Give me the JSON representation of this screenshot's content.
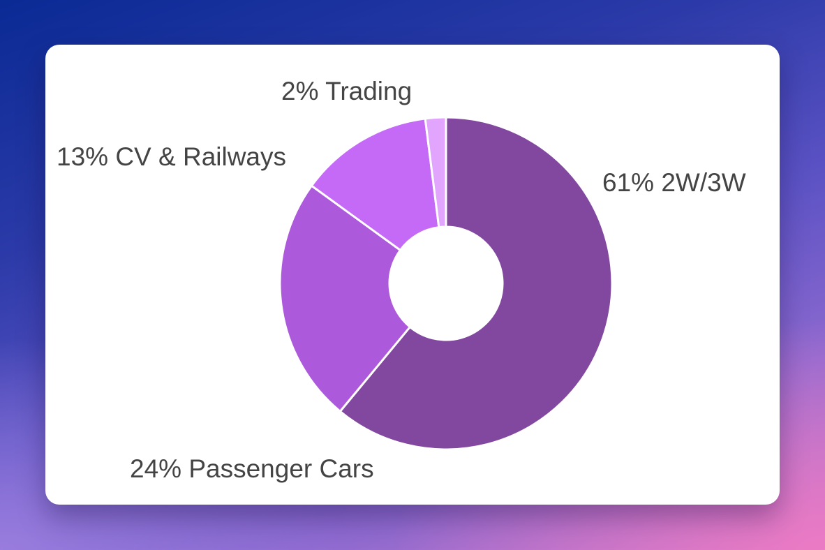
{
  "chart_data": {
    "type": "pie",
    "style": "donut",
    "title": "",
    "start_angle_deg": 0,
    "direction": "clockwise",
    "slice_border_color": "#ffffff",
    "slices": [
      {
        "label": "2W/3W",
        "value": 61,
        "value_label": "61%",
        "display": "61% 2W/3W",
        "color": "#8248a0"
      },
      {
        "label": "Passenger Cars",
        "value": 24,
        "value_label": "24%",
        "display": "24% Passenger Cars",
        "color": "#ad59dc"
      },
      {
        "label": "CV & Railways",
        "value": 13,
        "value_label": "13%",
        "display": "13% CV & Railways",
        "color": "#c46af6"
      },
      {
        "label": "Trading",
        "value": 2,
        "value_label": "2%",
        "display": "2% Trading",
        "color": "#e1a5fe"
      }
    ]
  },
  "colors": {
    "card_background": "#ffffff",
    "label_text": "#444444"
  }
}
